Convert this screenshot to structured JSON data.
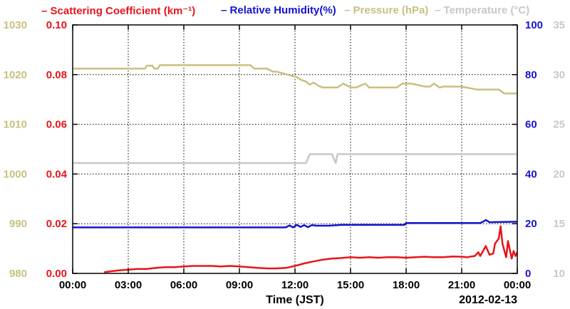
{
  "legend": [
    {
      "label": "Scattering Coefficient (km⁻¹)",
      "color": "#e8141a"
    },
    {
      "label": "Relative Humidity(%)",
      "color": "#1414d2"
    },
    {
      "label": "Pressure (hPa)",
      "color": "#c8c080"
    },
    {
      "label": "Temperature (°C)",
      "color": "#c8c8c8"
    }
  ],
  "chart_data": {
    "type": "line",
    "xlabel": "Time (JST)",
    "x_ticks": [
      "00:00",
      "03:00",
      "06:00",
      "09:00",
      "12:00",
      "15:00",
      "18:00",
      "21:00",
      "00:00"
    ],
    "xlim_hours": [
      0,
      24
    ],
    "date_label": "2012-02-13",
    "grid": true,
    "axes": {
      "pressure": {
        "side": "left-outer",
        "color": "#c8c080",
        "lim": [
          980,
          1030
        ],
        "ticks": [
          "980",
          "990",
          "1000",
          "1010",
          "1020",
          "1030"
        ]
      },
      "scattering": {
        "side": "left-inner",
        "color": "#e8141a",
        "lim": [
          0,
          0.1
        ],
        "ticks": [
          "0.00",
          "0.02",
          "0.04",
          "0.06",
          "0.08",
          "0.10"
        ]
      },
      "humidity": {
        "side": "right-inner",
        "color": "#1414d2",
        "lim": [
          0,
          100
        ],
        "ticks": [
          "0",
          "20",
          "40",
          "60",
          "80",
          "100"
        ]
      },
      "temperature": {
        "side": "right-outer",
        "color": "#c8c8c8",
        "lim": [
          10,
          35
        ],
        "ticks": [
          "10",
          "15",
          "20",
          "25",
          "30",
          "35"
        ]
      }
    },
    "series": [
      {
        "name": "Pressure (hPa)",
        "axis": "pressure",
        "color": "#c8c080",
        "x": [
          0,
          3.9,
          4.0,
          4.3,
          4.4,
          4.6,
          4.7,
          9.6,
          9.8,
          10.5,
          10.8,
          11.0,
          11.6,
          12.1,
          12.3,
          12.6,
          12.8,
          13.0,
          13.3,
          13.5,
          14.0,
          14.3,
          14.6,
          15.0,
          15.3,
          15.8,
          16.0,
          16.3,
          17.5,
          17.8,
          18.0,
          18.3,
          19.0,
          19.3,
          19.5,
          19.8,
          20.0,
          20.5,
          21.0,
          21.8,
          22.0,
          22.5,
          23.0,
          23.3,
          24.0
        ],
        "y": [
          1021.2,
          1021.2,
          1021.8,
          1021.8,
          1021.2,
          1021.2,
          1021.9,
          1021.9,
          1021.2,
          1021.2,
          1020.6,
          1020.6,
          1020.0,
          1019.5,
          1019.0,
          1018.6,
          1018.0,
          1018.4,
          1017.7,
          1017.4,
          1017.4,
          1017.4,
          1018.2,
          1017.4,
          1017.4,
          1018.2,
          1017.4,
          1017.4,
          1017.4,
          1018.2,
          1018.2,
          1018.2,
          1017.6,
          1017.6,
          1018.2,
          1017.4,
          1017.6,
          1017.6,
          1017.6,
          1017.0,
          1017.0,
          1017.0,
          1017.0,
          1016.2,
          1016.2
        ]
      },
      {
        "name": "Temperature (°C)",
        "axis": "temperature",
        "color": "#c8c8c8",
        "x": [
          0,
          12.6,
          12.8,
          14.0,
          14.2,
          14.3,
          14.4,
          15.0,
          24.0
        ],
        "y": [
          21.1,
          21.1,
          22.0,
          22.0,
          21.1,
          22.0,
          22.0,
          22.0,
          22.0
        ]
      },
      {
        "name": "Relative Humidity(%)",
        "axis": "humidity",
        "color": "#1414d2",
        "x": [
          0,
          11.5,
          11.7,
          11.9,
          12.1,
          12.3,
          12.5,
          12.7,
          12.9,
          13.2,
          13.8,
          14.5,
          17.9,
          18.0,
          21.5,
          22.0,
          22.2,
          22.3,
          22.5,
          24.0
        ],
        "y": [
          18.5,
          18.5,
          19.3,
          18.5,
          19.5,
          18.7,
          19.4,
          18.6,
          19.4,
          19.2,
          19.2,
          19.5,
          19.5,
          20.3,
          20.3,
          20.3,
          21.0,
          21.5,
          20.6,
          20.8
        ]
      },
      {
        "name": "Scattering Coefficient (km⁻¹)",
        "axis": "scattering",
        "color": "#e8141a",
        "x": [
          1.7,
          2.0,
          2.5,
          3.0,
          3.5,
          4.0,
          4.5,
          5.0,
          5.5,
          6.0,
          6.5,
          7.0,
          7.5,
          8.0,
          8.5,
          9.0,
          9.5,
          10.0,
          10.5,
          11.0,
          11.5,
          12.0,
          12.5,
          13.0,
          13.5,
          14.0,
          14.5,
          15.0,
          15.5,
          16.0,
          16.5,
          17.0,
          17.5,
          18.0,
          18.5,
          19.0,
          19.5,
          20.0,
          20.5,
          21.0,
          21.3,
          21.5,
          21.7,
          21.9,
          22.0,
          22.3,
          22.5,
          22.7,
          22.8,
          23.0,
          23.1,
          23.2,
          23.4,
          23.5,
          23.7,
          23.8,
          23.9,
          24.0
        ],
        "y": [
          0.0005,
          0.0008,
          0.0012,
          0.0015,
          0.0018,
          0.0018,
          0.0022,
          0.0025,
          0.0025,
          0.0028,
          0.003,
          0.003,
          0.003,
          0.0028,
          0.003,
          0.0028,
          0.0025,
          0.0022,
          0.002,
          0.002,
          0.0022,
          0.003,
          0.004,
          0.0048,
          0.0055,
          0.006,
          0.0062,
          0.0065,
          0.0063,
          0.0065,
          0.0063,
          0.0065,
          0.0065,
          0.0063,
          0.0065,
          0.0067,
          0.0065,
          0.0065,
          0.0068,
          0.0067,
          0.0065,
          0.0068,
          0.007,
          0.0085,
          0.007,
          0.011,
          0.0075,
          0.008,
          0.012,
          0.014,
          0.019,
          0.012,
          0.0065,
          0.013,
          0.006,
          0.009,
          0.007,
          0.0085
        ]
      }
    ]
  }
}
